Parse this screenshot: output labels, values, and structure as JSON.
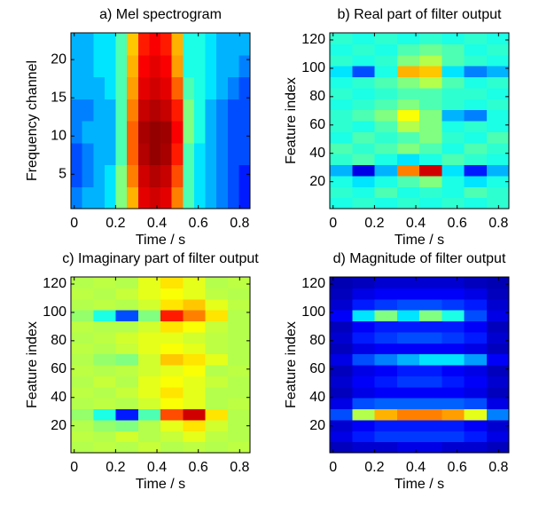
{
  "chart_data": [
    {
      "type": "heatmap",
      "title": "a) Mel spectrogram",
      "xlabel": "Time / s",
      "ylabel": "Frequency channel",
      "xlim": [
        -0.016,
        0.85
      ],
      "ylim": [
        0.5,
        23.5
      ],
      "xticks": [
        0,
        0.2,
        0.4,
        0.6,
        0.8
      ],
      "yticks": [
        5,
        10,
        15,
        20
      ],
      "z": [
        [
          0.25,
          0.3,
          0.3,
          0.35,
          0.5,
          0.7,
          0.9,
          0.92,
          0.9,
          0.75,
          0.45,
          0.35,
          0.3,
          0.25,
          0.2,
          0.15
        ],
        [
          0.2,
          0.25,
          0.3,
          0.35,
          0.5,
          0.75,
          0.92,
          0.95,
          0.93,
          0.8,
          0.45,
          0.35,
          0.3,
          0.25,
          0.2,
          0.15
        ],
        [
          0.2,
          0.25,
          0.3,
          0.3,
          0.45,
          0.78,
          0.95,
          0.98,
          0.96,
          0.85,
          0.45,
          0.35,
          0.3,
          0.25,
          0.2,
          0.2
        ],
        [
          0.25,
          0.3,
          0.3,
          0.3,
          0.45,
          0.78,
          0.96,
          0.98,
          0.97,
          0.88,
          0.5,
          0.4,
          0.3,
          0.25,
          0.2,
          0.2
        ],
        [
          0.25,
          0.25,
          0.3,
          0.3,
          0.45,
          0.75,
          0.93,
          0.95,
          0.93,
          0.85,
          0.5,
          0.4,
          0.3,
          0.25,
          0.2,
          0.2
        ],
        [
          0.3,
          0.3,
          0.3,
          0.35,
          0.45,
          0.72,
          0.9,
          0.92,
          0.9,
          0.78,
          0.45,
          0.4,
          0.35,
          0.3,
          0.25,
          0.2
        ],
        [
          0.3,
          0.3,
          0.35,
          0.35,
          0.45,
          0.7,
          0.88,
          0.9,
          0.88,
          0.72,
          0.4,
          0.4,
          0.35,
          0.3,
          0.3,
          0.25
        ],
        [
          0.3,
          0.3,
          0.35,
          0.35,
          0.45,
          0.68,
          0.85,
          0.88,
          0.85,
          0.7,
          0.4,
          0.4,
          0.35,
          0.3,
          0.3,
          0.3
        ]
      ]
    },
    {
      "type": "heatmap",
      "title": "b) Real part of filter output",
      "xlabel": "Time / s",
      "ylabel": "Feature index",
      "xlim": [
        -0.016,
        0.85
      ],
      "ylim": [
        1,
        125
      ],
      "xticks": [
        0,
        0.2,
        0.4,
        0.6,
        0.8
      ],
      "yticks": [
        20,
        40,
        60,
        80,
        100,
        120
      ],
      "z": [
        [
          0.4,
          0.42,
          0.4,
          0.42,
          0.4,
          0.42,
          0.4,
          0.42
        ],
        [
          0.42,
          0.4,
          0.45,
          0.4,
          0.42,
          0.4,
          0.45,
          0.42
        ],
        [
          0.4,
          0.35,
          0.4,
          0.45,
          0.5,
          0.4,
          0.35,
          0.4
        ],
        [
          0.3,
          0.1,
          0.3,
          0.75,
          0.92,
          0.35,
          0.15,
          0.3
        ],
        [
          0.42,
          0.45,
          0.4,
          0.35,
          0.4,
          0.45,
          0.42,
          0.4
        ],
        [
          0.45,
          0.42,
          0.45,
          0.5,
          0.45,
          0.4,
          0.45,
          0.42
        ],
        [
          0.4,
          0.45,
          0.42,
          0.45,
          0.5,
          0.42,
          0.4,
          0.45
        ],
        [
          0.42,
          0.4,
          0.45,
          0.55,
          0.5,
          0.4,
          0.42,
          0.4
        ],
        [
          0.42,
          0.45,
          0.5,
          0.62,
          0.5,
          0.3,
          0.25,
          0.4
        ],
        [
          0.4,
          0.42,
          0.45,
          0.5,
          0.45,
          0.42,
          0.4,
          0.42
        ],
        [
          0.42,
          0.4,
          0.42,
          0.45,
          0.45,
          0.42,
          0.42,
          0.4
        ],
        [
          0.4,
          0.42,
          0.45,
          0.5,
          0.55,
          0.45,
          0.4,
          0.42
        ],
        [
          0.35,
          0.2,
          0.4,
          0.7,
          0.68,
          0.35,
          0.25,
          0.3
        ],
        [
          0.42,
          0.4,
          0.42,
          0.5,
          0.55,
          0.45,
          0.42,
          0.4
        ],
        [
          0.4,
          0.42,
          0.4,
          0.45,
          0.48,
          0.45,
          0.4,
          0.42
        ],
        [
          0.42,
          0.4,
          0.42,
          0.4,
          0.42,
          0.4,
          0.42,
          0.4
        ]
      ]
    },
    {
      "type": "heatmap",
      "title": "c) Imaginary part of filter output",
      "xlabel": "Time / s",
      "ylabel": "Feature index",
      "xlim": [
        -0.016,
        0.85
      ],
      "ylim": [
        1,
        125
      ],
      "xticks": [
        0,
        0.2,
        0.4,
        0.6,
        0.8
      ],
      "yticks": [
        20,
        40,
        60,
        80,
        100,
        120
      ],
      "z": [
        [
          0.55,
          0.56,
          0.55,
          0.57,
          0.55,
          0.56,
          0.55,
          0.56
        ],
        [
          0.56,
          0.55,
          0.58,
          0.55,
          0.57,
          0.6,
          0.56,
          0.55
        ],
        [
          0.55,
          0.52,
          0.5,
          0.55,
          0.6,
          0.65,
          0.58,
          0.55
        ],
        [
          0.52,
          0.4,
          0.15,
          0.45,
          0.8,
          0.92,
          0.65,
          0.55
        ],
        [
          0.55,
          0.56,
          0.55,
          0.58,
          0.62,
          0.6,
          0.55,
          0.56
        ],
        [
          0.56,
          0.55,
          0.57,
          0.6,
          0.65,
          0.6,
          0.55,
          0.55
        ],
        [
          0.55,
          0.57,
          0.55,
          0.6,
          0.62,
          0.6,
          0.57,
          0.55
        ],
        [
          0.56,
          0.55,
          0.56,
          0.58,
          0.6,
          0.62,
          0.55,
          0.56
        ],
        [
          0.55,
          0.52,
          0.5,
          0.58,
          0.68,
          0.65,
          0.6,
          0.55
        ],
        [
          0.56,
          0.55,
          0.57,
          0.6,
          0.62,
          0.6,
          0.56,
          0.55
        ],
        [
          0.55,
          0.56,
          0.58,
          0.6,
          0.6,
          0.58,
          0.56,
          0.55
        ],
        [
          0.56,
          0.55,
          0.55,
          0.58,
          0.65,
          0.62,
          0.57,
          0.55
        ],
        [
          0.52,
          0.4,
          0.2,
          0.5,
          0.85,
          0.75,
          0.65,
          0.55
        ],
        [
          0.55,
          0.56,
          0.55,
          0.58,
          0.65,
          0.68,
          0.6,
          0.56
        ],
        [
          0.56,
          0.55,
          0.57,
          0.6,
          0.62,
          0.6,
          0.56,
          0.55
        ],
        [
          0.55,
          0.56,
          0.55,
          0.6,
          0.65,
          0.6,
          0.55,
          0.56
        ]
      ]
    },
    {
      "type": "heatmap",
      "title": "d) Magnitude of filter output",
      "xlabel": "Time / s",
      "ylabel": "Feature index",
      "xlim": [
        -0.016,
        0.85
      ],
      "ylim": [
        1,
        125
      ],
      "xticks": [
        0,
        0.2,
        0.4,
        0.6,
        0.8
      ],
      "yticks": [
        20,
        40,
        60,
        80,
        100,
        120
      ],
      "z": [
        [
          0.06,
          0.08,
          0.08,
          0.1,
          0.1,
          0.08,
          0.08,
          0.06
        ],
        [
          0.1,
          0.15,
          0.18,
          0.18,
          0.18,
          0.18,
          0.15,
          0.1
        ],
        [
          0.08,
          0.12,
          0.15,
          0.15,
          0.15,
          0.15,
          0.12,
          0.08
        ],
        [
          0.2,
          0.55,
          0.7,
          0.75,
          0.75,
          0.72,
          0.6,
          0.25
        ],
        [
          0.1,
          0.2,
          0.22,
          0.22,
          0.22,
          0.22,
          0.2,
          0.1
        ],
        [
          0.06,
          0.1,
          0.12,
          0.12,
          0.12,
          0.12,
          0.1,
          0.06
        ],
        [
          0.08,
          0.12,
          0.15,
          0.18,
          0.18,
          0.15,
          0.12,
          0.08
        ],
        [
          0.06,
          0.1,
          0.12,
          0.15,
          0.15,
          0.12,
          0.1,
          0.06
        ],
        [
          0.1,
          0.2,
          0.25,
          0.3,
          0.35,
          0.35,
          0.28,
          0.12
        ],
        [
          0.06,
          0.1,
          0.12,
          0.12,
          0.12,
          0.12,
          0.1,
          0.06
        ],
        [
          0.08,
          0.15,
          0.18,
          0.2,
          0.2,
          0.18,
          0.15,
          0.08
        ],
        [
          0.06,
          0.12,
          0.15,
          0.15,
          0.15,
          0.15,
          0.12,
          0.06
        ],
        [
          0.12,
          0.35,
          0.5,
          0.35,
          0.5,
          0.4,
          0.2,
          0.1
        ],
        [
          0.08,
          0.15,
          0.18,
          0.2,
          0.2,
          0.18,
          0.15,
          0.08
        ],
        [
          0.06,
          0.1,
          0.12,
          0.12,
          0.12,
          0.12,
          0.1,
          0.06
        ],
        [
          0.05,
          0.06,
          0.08,
          0.08,
          0.08,
          0.08,
          0.06,
          0.05
        ]
      ]
    }
  ]
}
